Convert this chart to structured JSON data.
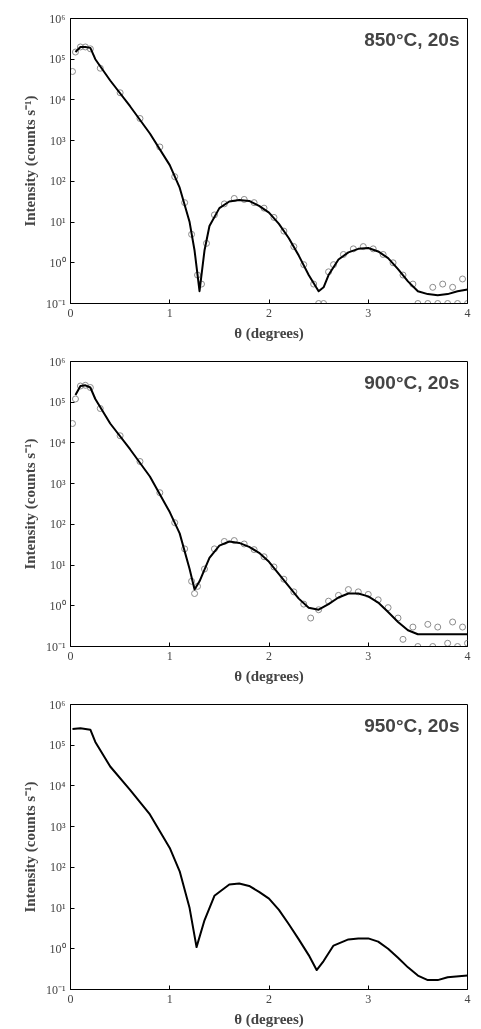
{
  "chart_data": [
    {
      "type": "line",
      "xlabel": "θ (degrees)",
      "ylabel": "Intensity (counts s⁻¹)",
      "annotations": [
        "850°C, 20s"
      ],
      "log": "y",
      "xlim": [
        0,
        4
      ],
      "ylim": [
        0.1,
        1000000
      ],
      "xticks": [
        0,
        1,
        2,
        3,
        4
      ],
      "yticks": [
        {
          "value": 0.1,
          "label": "10⁻¹"
        },
        {
          "value": 1,
          "label": "10⁰"
        },
        {
          "value": 10,
          "label": "10¹"
        },
        {
          "value": 100,
          "label": "10²"
        },
        {
          "value": 1000,
          "label": "10³"
        },
        {
          "value": 10000,
          "label": "10⁴"
        },
        {
          "value": 100000,
          "label": "10⁵"
        },
        {
          "value": 1000000,
          "label": "10⁶"
        }
      ],
      "grid": false,
      "series": [
        {
          "type": "scatter",
          "marker": "circle",
          "color": "#8c8c8c",
          "x": [
            0.02,
            0.05,
            0.1,
            0.15,
            0.2,
            0.3,
            0.5,
            0.7,
            0.9,
            1.05,
            1.15,
            1.22,
            1.28,
            1.32,
            1.37,
            1.45,
            1.55,
            1.65,
            1.75,
            1.85,
            1.95,
            2.05,
            2.15,
            2.25,
            2.35,
            2.45,
            2.5,
            2.55,
            2.6,
            2.65,
            2.75,
            2.85,
            2.95,
            3.05,
            3.15,
            3.25,
            3.35,
            3.45,
            3.5,
            3.6,
            3.65,
            3.7,
            3.75,
            3.8,
            3.85,
            3.9,
            3.95,
            4.0
          ],
          "values": [
            50000,
            150000,
            200000,
            200000,
            180000,
            60000,
            15000,
            3500,
            700,
            130,
            30,
            5,
            0.5,
            0.3,
            3,
            15,
            28,
            38,
            36,
            30,
            22,
            13,
            6,
            2.5,
            0.9,
            0.3,
            0.1,
            0.1,
            0.6,
            0.9,
            1.6,
            2.2,
            2.5,
            2.2,
            1.6,
            1,
            0.5,
            0.3,
            0.1,
            0.1,
            0.25,
            0.1,
            0.3,
            0.1,
            0.25,
            0.1,
            0.4,
            0.1
          ]
        },
        {
          "color": "#000000",
          "x": [
            0.05,
            0.1,
            0.15,
            0.2,
            0.25,
            0.4,
            0.6,
            0.8,
            1.0,
            1.1,
            1.2,
            1.25,
            1.3,
            1.35,
            1.4,
            1.5,
            1.6,
            1.7,
            1.8,
            1.9,
            2.0,
            2.1,
            2.2,
            2.3,
            2.4,
            2.5,
            2.55,
            2.6,
            2.7,
            2.8,
            2.9,
            3.0,
            3.1,
            3.2,
            3.3,
            3.4,
            3.5,
            3.6,
            3.7,
            3.8,
            3.9,
            4.0
          ],
          "values": [
            150000,
            200000,
            200000,
            190000,
            100000,
            30000,
            7000,
            1500,
            250,
            70,
            10,
            2,
            0.2,
            2,
            8,
            22,
            32,
            35,
            33,
            25,
            17,
            9,
            4,
            1.5,
            0.5,
            0.2,
            0.25,
            0.5,
            1.2,
            1.8,
            2.2,
            2.3,
            1.9,
            1.3,
            0.7,
            0.35,
            0.2,
            0.17,
            0.16,
            0.17,
            0.2,
            0.22
          ]
        }
      ]
    },
    {
      "type": "line",
      "xlabel": "θ (degrees)",
      "ylabel": "Intensity (counts s⁻¹)",
      "annotations": [
        "900°C, 20s"
      ],
      "log": "y",
      "xlim": [
        0,
        4
      ],
      "ylim": [
        0.1,
        1000000
      ],
      "xticks": [
        0,
        1,
        2,
        3,
        4
      ],
      "yticks": [
        {
          "value": 0.1,
          "label": "10⁻¹"
        },
        {
          "value": 1,
          "label": "10⁰"
        },
        {
          "value": 10,
          "label": "10¹"
        },
        {
          "value": 100,
          "label": "10²"
        },
        {
          "value": 1000,
          "label": "10³"
        },
        {
          "value": 10000,
          "label": "10⁴"
        },
        {
          "value": 100000,
          "label": "10⁵"
        },
        {
          "value": 1000000,
          "label": "10⁶"
        }
      ],
      "grid": false,
      "series": [
        {
          "type": "scatter",
          "marker": "circle",
          "color": "#8c8c8c",
          "x": [
            0.02,
            0.05,
            0.1,
            0.15,
            0.2,
            0.3,
            0.5,
            0.7,
            0.9,
            1.05,
            1.15,
            1.22,
            1.25,
            1.28,
            1.35,
            1.45,
            1.55,
            1.65,
            1.75,
            1.85,
            1.95,
            2.05,
            2.15,
            2.25,
            2.35,
            2.42,
            2.5,
            2.6,
            2.7,
            2.8,
            2.9,
            3.0,
            3.1,
            3.2,
            3.3,
            3.35,
            3.45,
            3.5,
            3.6,
            3.65,
            3.7,
            3.8,
            3.85,
            3.9,
            3.95,
            4.0
          ],
          "values": [
            30000,
            120000,
            250000,
            260000,
            230000,
            70000,
            15000,
            3500,
            600,
            110,
            25,
            4,
            2,
            3,
            8,
            25,
            38,
            40,
            33,
            24,
            16,
            9,
            4.5,
            2.2,
            1.1,
            0.5,
            0.8,
            1.3,
            1.8,
            2.5,
            2.2,
            1.9,
            1.4,
            0.9,
            0.5,
            0.15,
            0.3,
            0.1,
            0.35,
            0.1,
            0.3,
            0.12,
            0.4,
            0.1,
            0.3,
            0.12
          ]
        },
        {
          "color": "#000000",
          "x": [
            0.05,
            0.1,
            0.15,
            0.2,
            0.25,
            0.4,
            0.6,
            0.8,
            1.0,
            1.1,
            1.2,
            1.25,
            1.3,
            1.4,
            1.5,
            1.6,
            1.7,
            1.8,
            1.9,
            2.0,
            2.1,
            2.2,
            2.3,
            2.4,
            2.5,
            2.6,
            2.7,
            2.8,
            2.9,
            3.0,
            3.1,
            3.2,
            3.3,
            3.4,
            3.5,
            3.6,
            4.0
          ],
          "values": [
            150000,
            250000,
            260000,
            230000,
            120000,
            30000,
            7000,
            1500,
            200,
            60,
            8,
            2.5,
            4,
            15,
            30,
            38,
            35,
            28,
            20,
            12,
            6,
            3,
            1.5,
            0.9,
            0.8,
            1.1,
            1.6,
            2,
            2,
            1.7,
            1.2,
            0.7,
            0.4,
            0.25,
            0.2,
            0.2,
            0.2
          ]
        }
      ]
    },
    {
      "type": "line",
      "xlabel": "θ (degrees)",
      "ylabel": "Intensity (counts s⁻¹)",
      "annotations": [
        "950°C, 20s"
      ],
      "log": "y",
      "xlim": [
        0,
        4
      ],
      "ylim": [
        0.1,
        1000000
      ],
      "xticks": [
        0,
        1,
        2,
        3,
        4
      ],
      "yticks": [
        {
          "value": 0.1,
          "label": "10⁻¹"
        },
        {
          "value": 1,
          "label": "10⁰"
        },
        {
          "value": 10,
          "label": "10¹"
        },
        {
          "value": 100,
          "label": "10²"
        },
        {
          "value": 1000,
          "label": "10³"
        },
        {
          "value": 10000,
          "label": "10⁴"
        },
        {
          "value": 100000,
          "label": "10⁵"
        },
        {
          "value": 1000000,
          "label": "10⁶"
        }
      ],
      "grid": false,
      "series": [
        {
          "color": "#000000",
          "x": [
            0.02,
            0.1,
            0.2,
            0.25,
            0.4,
            0.6,
            0.8,
            1.0,
            1.1,
            1.2,
            1.27,
            1.35,
            1.45,
            1.6,
            1.7,
            1.8,
            1.9,
            2.0,
            2.1,
            2.2,
            2.3,
            2.4,
            2.48,
            2.55,
            2.65,
            2.8,
            2.9,
            3.0,
            3.1,
            3.2,
            3.3,
            3.4,
            3.5,
            3.6,
            3.7,
            3.8,
            4.0
          ],
          "values": [
            250000,
            260000,
            240000,
            120000,
            30000,
            8000,
            2000,
            300,
            80,
            10,
            1.1,
            5,
            20,
            38,
            40,
            35,
            25,
            17,
            9,
            4,
            1.7,
            0.7,
            0.3,
            0.5,
            1.2,
            1.7,
            1.8,
            1.8,
            1.5,
            1,
            0.6,
            0.35,
            0.22,
            0.17,
            0.17,
            0.2,
            0.22
          ]
        }
      ]
    }
  ]
}
